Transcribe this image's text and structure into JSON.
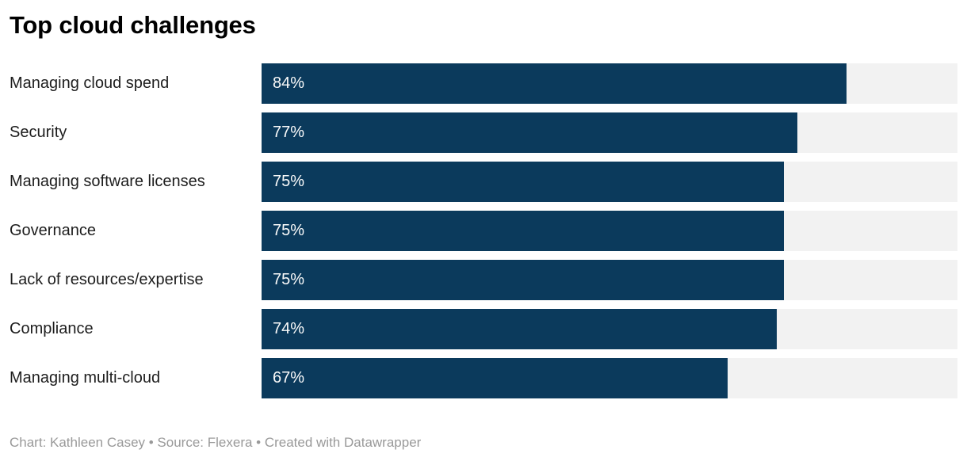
{
  "chart_data": {
    "type": "bar",
    "orientation": "horizontal",
    "title": "Top cloud challenges",
    "categories": [
      "Managing cloud spend",
      "Security",
      "Managing software licenses",
      "Governance",
      "Lack of resources/expertise",
      "Compliance",
      "Managing multi-cloud"
    ],
    "values": [
      84,
      77,
      75,
      75,
      75,
      74,
      67
    ],
    "value_suffix": "%",
    "xlim": [
      0,
      100
    ],
    "grid": false,
    "legend": "none",
    "bar_color": "#0b3a5c",
    "track_color": "#f2f2f2",
    "value_label_color": "#fafafa"
  },
  "footer": {
    "attribution": "Chart: Kathleen Casey • Source: Flexera • Created with Datawrapper"
  }
}
